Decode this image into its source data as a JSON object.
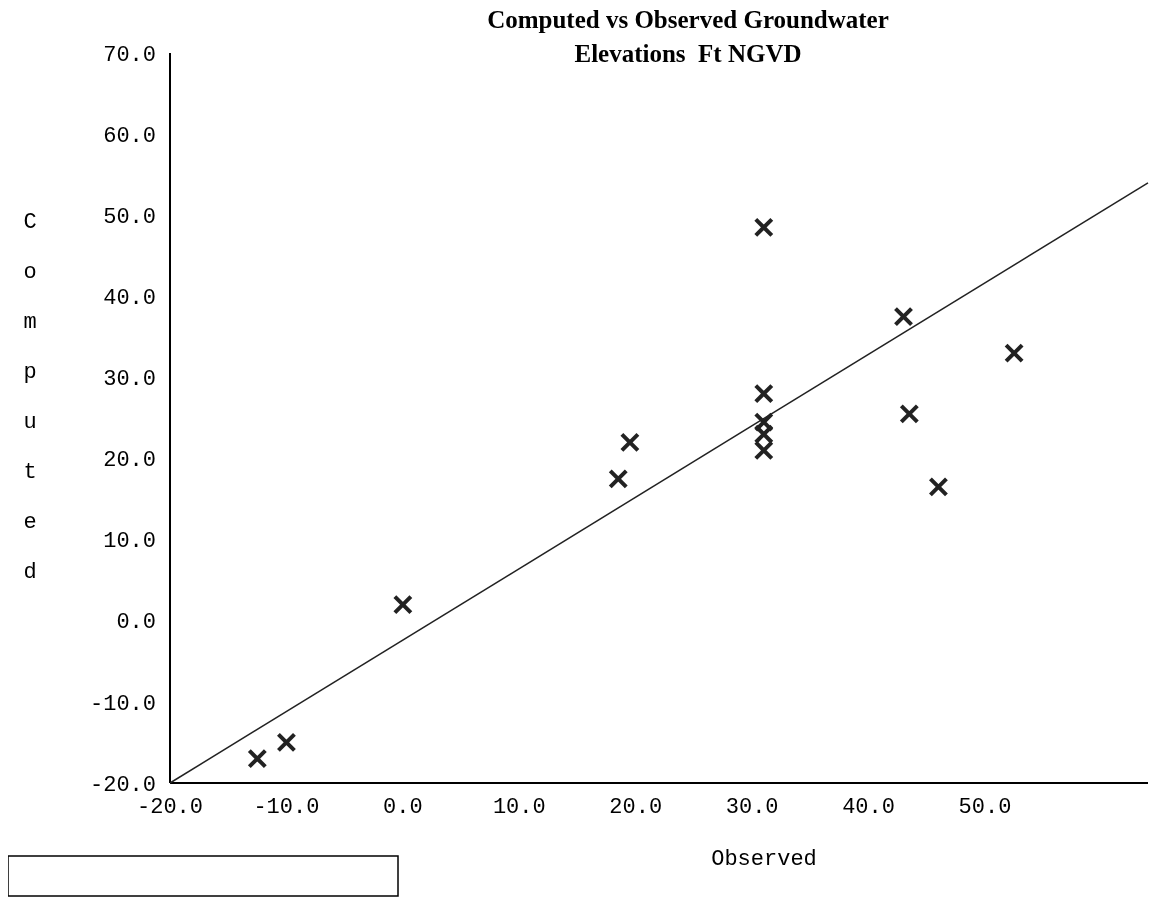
{
  "chart_data": {
    "type": "scatter",
    "title": "Computed vs Observed Groundwater\nElevations  Ft NGVD",
    "xlabel": "Observed",
    "ylabel": "Computed",
    "xlim": [
      -20,
      64
    ],
    "ylim": [
      -20,
      70
    ],
    "xticks": [
      {
        "value": -20,
        "label": "-20.0"
      },
      {
        "value": -10,
        "label": "-10.0"
      },
      {
        "value": 0,
        "label": "0.0"
      },
      {
        "value": 10,
        "label": "10.0"
      },
      {
        "value": 20,
        "label": "20.0"
      },
      {
        "value": 30,
        "label": "30.0"
      },
      {
        "value": 40,
        "label": "40.0"
      },
      {
        "value": 50,
        "label": "50.0"
      }
    ],
    "yticks": [
      {
        "value": -20,
        "label": "-20.0"
      },
      {
        "value": -10,
        "label": "-10.0"
      },
      {
        "value": 0,
        "label": "0.0"
      },
      {
        "value": 10,
        "label": "10.0"
      },
      {
        "value": 20,
        "label": "20.0"
      },
      {
        "value": 30,
        "label": "30.0"
      },
      {
        "value": 40,
        "label": "40.0"
      },
      {
        "value": 50,
        "label": "50.0"
      },
      {
        "value": 60,
        "label": "60.0"
      },
      {
        "value": 70,
        "label": "70.0"
      }
    ],
    "grid": false,
    "series": [
      {
        "marker": "cross",
        "color": "#222222",
        "x": [
          -12.5,
          -10,
          0,
          18.5,
          19.5,
          31,
          31,
          31,
          31,
          31,
          43,
          43.5,
          46,
          52.5
        ],
        "values": [
          -17,
          -15,
          2,
          17.5,
          22,
          48.5,
          28,
          24.5,
          23,
          21,
          37.5,
          25.5,
          16.5,
          33
        ]
      },
      {
        "type": "line",
        "color": "#222222",
        "line_style": "solid",
        "x": [
          -20,
          64
        ],
        "values": [
          -20,
          54
        ]
      }
    ]
  }
}
